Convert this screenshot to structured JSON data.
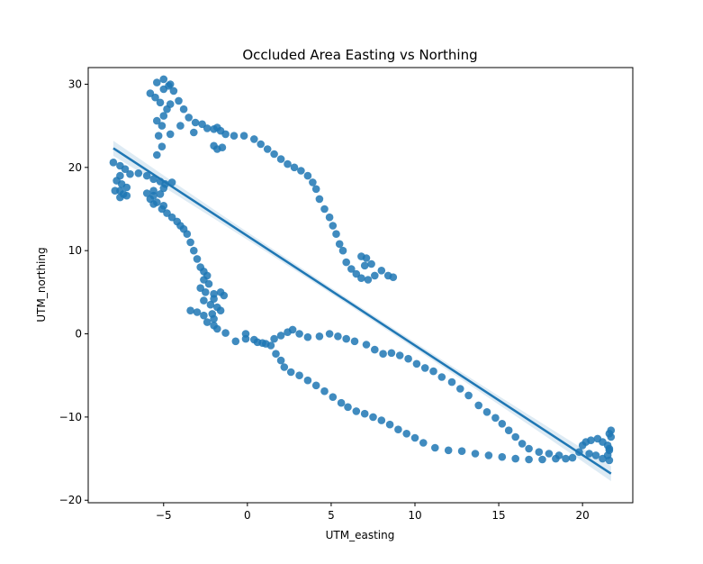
{
  "chart_data": {
    "type": "scatter",
    "title": "Occluded Area Easting vs Northing",
    "xlabel": "UTM_easting",
    "ylabel": "UTM_northing",
    "xlim": [
      -9.5,
      23.0
    ],
    "ylim": [
      -20.3,
      32.0
    ],
    "xticks": [
      -5,
      0,
      5,
      10,
      15,
      20
    ],
    "yticks": [
      -20,
      -10,
      0,
      10,
      20,
      30
    ],
    "grid": false,
    "colors": {
      "points": "#1f77b4",
      "line": "#1f77b4",
      "band": "#1f77b4"
    },
    "regression": {
      "x": [
        -8.0,
        21.7
      ],
      "y": [
        22.3,
        -16.8
      ]
    },
    "points": [
      [
        -8,
        20.6
      ],
      [
        -7.6,
        20.2
      ],
      [
        -7.3,
        19.8
      ],
      [
        -7.6,
        19.0
      ],
      [
        -7.8,
        18.4
      ],
      [
        -7.5,
        18.0
      ],
      [
        -7.2,
        17.6
      ],
      [
        -7.6,
        17.2
      ],
      [
        -7.9,
        17.2
      ],
      [
        -7.4,
        16.8
      ],
      [
        -7.2,
        16.6
      ],
      [
        -7.6,
        16.4
      ],
      [
        -7.0,
        19.2
      ],
      [
        -6.5,
        19.3
      ],
      [
        -6.0,
        19.0
      ],
      [
        -5.6,
        18.6
      ],
      [
        -5.2,
        18.3
      ],
      [
        -4.9,
        18.0
      ],
      [
        -4.5,
        18.2
      ],
      [
        -5.0,
        17.5
      ],
      [
        -5.6,
        17.2
      ],
      [
        -6.0,
        16.9
      ],
      [
        -5.6,
        16.6
      ],
      [
        -5.2,
        16.8
      ],
      [
        -5.8,
        16.2
      ],
      [
        -5.4,
        15.8
      ],
      [
        -5.0,
        15.4
      ],
      [
        -5.6,
        15.6
      ],
      [
        -5.1,
        15.0
      ],
      [
        -4.8,
        14.5
      ],
      [
        -4.5,
        14.0
      ],
      [
        -4.2,
        13.5
      ],
      [
        -4.0,
        13.0
      ],
      [
        -3.8,
        12.6
      ],
      [
        -3.6,
        12.0
      ],
      [
        -3.4,
        11.0
      ],
      [
        -3.2,
        10.0
      ],
      [
        -3.0,
        9.0
      ],
      [
        -2.8,
        8.0
      ],
      [
        -2.6,
        7.5
      ],
      [
        -2.4,
        7.0
      ],
      [
        -2.6,
        6.5
      ],
      [
        -2.3,
        6.0
      ],
      [
        -2.8,
        5.5
      ],
      [
        -2.5,
        5.0
      ],
      [
        -2.0,
        4.8
      ],
      [
        -1.6,
        5.0
      ],
      [
        -1.4,
        4.6
      ],
      [
        -2.0,
        4.2
      ],
      [
        -2.6,
        4.0
      ],
      [
        -2.2,
        3.5
      ],
      [
        -1.8,
        3.2
      ],
      [
        -1.6,
        2.8
      ],
      [
        -2.1,
        2.4
      ],
      [
        -2.6,
        2.2
      ],
      [
        -3.0,
        2.6
      ],
      [
        -3.4,
        2.8
      ],
      [
        -2.0,
        1.8
      ],
      [
        -2.4,
        1.4
      ],
      [
        -2.0,
        1.0
      ],
      [
        -1.8,
        0.6
      ],
      [
        -1.3,
        0.1
      ],
      [
        -0.7,
        -0.9
      ],
      [
        -0.1,
        -0.6
      ],
      [
        0.6,
        -1.0
      ],
      [
        1.1,
        -1.2
      ],
      [
        1.6,
        -0.6
      ],
      [
        2.0,
        -0.2
      ],
      [
        2.4,
        0.2
      ],
      [
        2.7,
        0.5
      ],
      [
        3.1,
        0.0
      ],
      [
        3.6,
        -0.4
      ],
      [
        4.3,
        -0.3
      ],
      [
        4.9,
        0.0
      ],
      [
        5.4,
        -0.3
      ],
      [
        5.9,
        -0.6
      ],
      [
        6.4,
        -0.9
      ],
      [
        7.1,
        -1.3
      ],
      [
        7.6,
        -1.9
      ],
      [
        8.1,
        -2.4
      ],
      [
        8.6,
        -2.3
      ],
      [
        9.1,
        -2.6
      ],
      [
        9.6,
        -3.0
      ],
      [
        10.1,
        -3.6
      ],
      [
        10.6,
        -4.1
      ],
      [
        11.1,
        -4.5
      ],
      [
        11.6,
        -5.2
      ],
      [
        -0.1,
        0.0
      ],
      [
        0.4,
        -0.7
      ],
      [
        0.9,
        -1.1
      ],
      [
        1.4,
        -1.4
      ],
      [
        1.7,
        -2.4
      ],
      [
        2.0,
        -3.2
      ],
      [
        2.2,
        -4.0
      ],
      [
        2.6,
        -4.6
      ],
      [
        3.1,
        -5.0
      ],
      [
        3.6,
        -5.6
      ],
      [
        4.1,
        -6.2
      ],
      [
        4.6,
        -6.9
      ],
      [
        5.1,
        -7.6
      ],
      [
        5.6,
        -8.3
      ],
      [
        6.0,
        -8.8
      ],
      [
        6.5,
        -9.3
      ],
      [
        7.0,
        -9.6
      ],
      [
        7.5,
        -10.0
      ],
      [
        8.0,
        -10.4
      ],
      [
        8.5,
        -10.9
      ],
      [
        9.0,
        -11.5
      ],
      [
        9.5,
        -12.0
      ],
      [
        10.0,
        -12.5
      ],
      [
        10.5,
        -13.1
      ],
      [
        11.2,
        -13.7
      ],
      [
        12.0,
        -14.0
      ],
      [
        12.8,
        -14.1
      ],
      [
        13.6,
        -14.4
      ],
      [
        14.4,
        -14.6
      ],
      [
        15.2,
        -14.8
      ],
      [
        16.0,
        -15.0
      ],
      [
        16.8,
        -15.1
      ],
      [
        17.6,
        -15.1
      ],
      [
        18.4,
        -15.0
      ],
      [
        19.0,
        -15.0
      ],
      [
        19.4,
        -14.9
      ],
      [
        18.6,
        -14.6
      ],
      [
        18.0,
        -14.4
      ],
      [
        17.4,
        -14.2
      ],
      [
        16.8,
        -13.8
      ],
      [
        16.4,
        -13.2
      ],
      [
        16.0,
        -12.4
      ],
      [
        15.6,
        -11.6
      ],
      [
        15.2,
        -10.8
      ],
      [
        14.8,
        -10.1
      ],
      [
        14.3,
        -9.4
      ],
      [
        13.8,
        -8.6
      ],
      [
        13.2,
        -7.4
      ],
      [
        12.7,
        -6.6
      ],
      [
        12.2,
        -5.8
      ],
      [
        19.8,
        -14.2
      ],
      [
        20.0,
        -13.4
      ],
      [
        20.2,
        -13.0
      ],
      [
        20.5,
        -12.8
      ],
      [
        20.9,
        -12.6
      ],
      [
        21.2,
        -13.0
      ],
      [
        21.5,
        -13.4
      ],
      [
        21.6,
        -12.0
      ],
      [
        21.7,
        -11.6
      ],
      [
        21.6,
        -14.0
      ],
      [
        21.5,
        -14.6
      ],
      [
        21.6,
        -15.2
      ],
      [
        21.2,
        -15.0
      ],
      [
        20.8,
        -14.6
      ],
      [
        20.4,
        -14.4
      ],
      [
        21.7,
        -12.4
      ],
      [
        21.6,
        -13.8
      ],
      [
        -5.4,
        21.5
      ],
      [
        -5.1,
        22.5
      ],
      [
        -5.3,
        23.8
      ],
      [
        -5.1,
        25.0
      ],
      [
        -5.4,
        25.6
      ],
      [
        -5.0,
        26.2
      ],
      [
        -4.8,
        27.0
      ],
      [
        -4.6,
        27.6
      ],
      [
        -5.2,
        27.8
      ],
      [
        -5.5,
        28.4
      ],
      [
        -5.8,
        28.9
      ],
      [
        -5.0,
        29.4
      ],
      [
        -4.7,
        29.8
      ],
      [
        -5.4,
        30.2
      ],
      [
        -5.0,
        30.6
      ],
      [
        -4.6,
        30.0
      ],
      [
        -4.4,
        29.2
      ],
      [
        -4.1,
        28.0
      ],
      [
        -3.8,
        27.0
      ],
      [
        -3.5,
        26.0
      ],
      [
        -3.1,
        25.4
      ],
      [
        -2.7,
        25.2
      ],
      [
        -2.4,
        24.7
      ],
      [
        -2.0,
        24.6
      ],
      [
        -1.6,
        24.4
      ],
      [
        -1.3,
        24.0
      ],
      [
        -4.6,
        24.0
      ],
      [
        -4.0,
        25.0
      ],
      [
        -3.2,
        24.2
      ],
      [
        -1.8,
        24.8
      ],
      [
        -2.0,
        22.6
      ],
      [
        -1.8,
        22.2
      ],
      [
        -1.5,
        22.4
      ],
      [
        -0.8,
        23.8
      ],
      [
        -0.2,
        23.8
      ],
      [
        0.4,
        23.4
      ],
      [
        0.8,
        22.8
      ],
      [
        1.2,
        22.2
      ],
      [
        1.6,
        21.6
      ],
      [
        2.0,
        21.0
      ],
      [
        2.4,
        20.4
      ],
      [
        2.8,
        20.0
      ],
      [
        3.2,
        19.6
      ],
      [
        3.6,
        19.0
      ],
      [
        3.9,
        18.2
      ],
      [
        4.1,
        17.4
      ],
      [
        4.3,
        16.2
      ],
      [
        4.6,
        15.0
      ],
      [
        4.9,
        14.0
      ],
      [
        5.1,
        13.0
      ],
      [
        5.3,
        12.0
      ],
      [
        5.5,
        10.8
      ],
      [
        5.7,
        10.0
      ],
      [
        5.9,
        8.6
      ],
      [
        6.2,
        7.8
      ],
      [
        6.5,
        7.2
      ],
      [
        6.8,
        6.7
      ],
      [
        7.2,
        6.5
      ],
      [
        7.6,
        7.0
      ],
      [
        8.0,
        7.6
      ],
      [
        8.4,
        7.0
      ],
      [
        8.7,
        6.8
      ],
      [
        7.4,
        8.4
      ],
      [
        7.1,
        9.1
      ],
      [
        6.8,
        9.3
      ],
      [
        7.0,
        8.2
      ]
    ]
  }
}
